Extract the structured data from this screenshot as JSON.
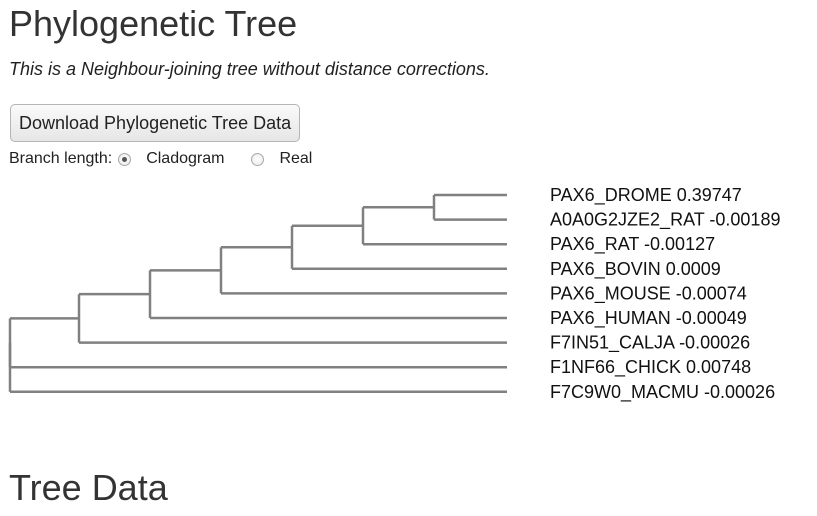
{
  "page": {
    "title": "Phylogenetic Tree",
    "subtitle": "This is a Neighbour-joining tree without distance corrections.",
    "download_button": "Download Phylogenetic Tree Data",
    "section_title": "Tree Data"
  },
  "branch_length": {
    "label": "Branch length:",
    "options": [
      {
        "label": "Cladogram",
        "selected": true
      },
      {
        "label": "Real",
        "selected": false
      }
    ]
  },
  "tree": {
    "line_color": "#808080",
    "leaves": [
      {
        "name": "PAX6_DROME",
        "length": "0.39747"
      },
      {
        "name": "A0A0G2JZE2_RAT",
        "length": "-0.00189"
      },
      {
        "name": "PAX6_RAT",
        "length": "-0.00127"
      },
      {
        "name": "PAX6_BOVIN",
        "length": "0.0009"
      },
      {
        "name": "PAX6_MOUSE",
        "length": "-0.00074"
      },
      {
        "name": "PAX6_HUMAN",
        "length": "-0.00049"
      },
      {
        "name": "F7IN51_CALJA",
        "length": "-0.00026"
      },
      {
        "name": "F1NF66_CHICK",
        "length": "0.00748"
      },
      {
        "name": "F7C9W0_MACMU",
        "length": "-0.00026"
      }
    ],
    "newick_structure": "((((((PAX6_DROME,A0A0G2JZE2_RAT),PAX6_RAT),PAX6_BOVIN),PAX6_MOUSE),PAX6_HUMAN),F7IN51_CALJA),F1NF66_CHICK,F7C9W0_MACMU"
  }
}
